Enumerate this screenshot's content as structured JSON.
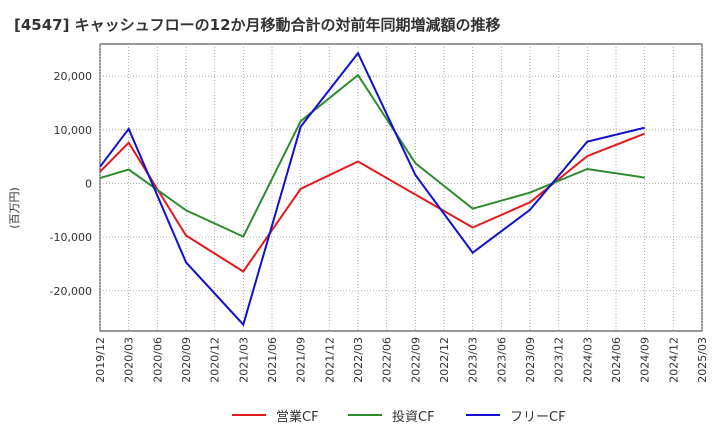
{
  "title": "[4547]  キャッシュフローの12か月移動合計の対前年同期増減額の推移",
  "chart_data": {
    "type": "line",
    "title": "[4547]  キャッシュフローの12か月移動合計の対前年同期増減額の推移",
    "ylabel": "(百万円)",
    "xlabel": "",
    "ylim": [
      -27500,
      26000
    ],
    "y_ticks": [
      20000,
      10000,
      0,
      -10000,
      -20000
    ],
    "y_tick_labels": [
      "20,000",
      "10,000",
      "0",
      "-10,000",
      "-20,000"
    ],
    "x_tick_labels": [
      "2019/12",
      "2020/03",
      "2020/06",
      "2020/09",
      "2020/12",
      "2021/03",
      "2021/06",
      "2021/09",
      "2021/12",
      "2022/03",
      "2022/06",
      "2022/09",
      "2022/12",
      "2023/03",
      "2023/06",
      "2023/09",
      "2023/12",
      "2024/03",
      "2024/06",
      "2024/09",
      "2024/12",
      "2025/03"
    ],
    "x": [
      "2019/12",
      "2020/03",
      "2020/06",
      "2020/09",
      "2020/12",
      "2021/03",
      "2021/06",
      "2021/09",
      "2021/12",
      "2022/03",
      "2022/06",
      "2022/09",
      "2022/12",
      "2023/03",
      "2023/06",
      "2023/09",
      "2023/12",
      "2024/03",
      "2024/06",
      "2024/09"
    ],
    "grid": true,
    "legend_position": "bottom",
    "series": [
      {
        "name": "営業CF",
        "color": "#e31a1c",
        "values": [
          2200,
          7600,
          null,
          -9700,
          null,
          -16400,
          null,
          -1000,
          null,
          4100,
          null,
          null,
          null,
          -8200,
          null,
          -3500,
          null,
          5100,
          null,
          9300
        ]
      },
      {
        "name": "投資CF",
        "color": "#2e8b2e",
        "values": [
          1000,
          2600,
          null,
          -5000,
          null,
          -9900,
          null,
          11600,
          null,
          20200,
          null,
          3800,
          null,
          -4700,
          null,
          -1700,
          null,
          2700,
          null,
          1100
        ]
      },
      {
        "name": "フリーCF",
        "color": "#1010d0",
        "values": [
          3100,
          10200,
          null,
          -14700,
          null,
          -26300,
          null,
          10600,
          null,
          24300,
          null,
          1600,
          null,
          -12900,
          null,
          -4900,
          null,
          7800,
          null,
          10400
        ]
      }
    ]
  }
}
